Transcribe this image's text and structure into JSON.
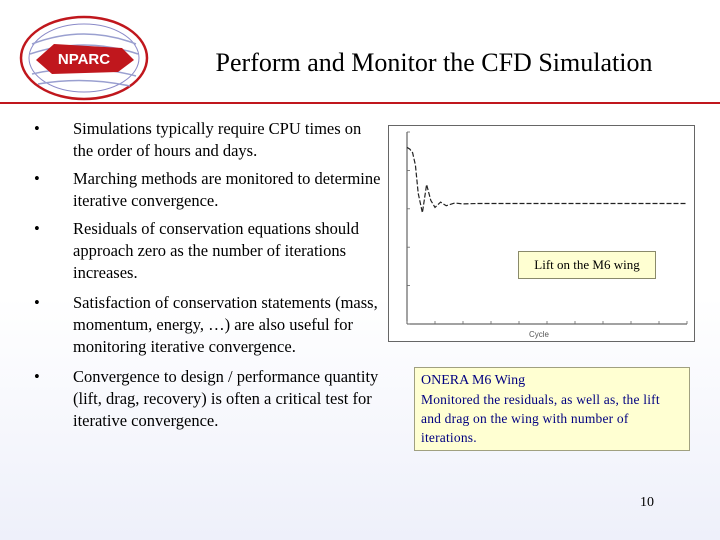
{
  "slide": {
    "logo_text": "NPARC",
    "title": "Perform and Monitor the CFD Simulation",
    "page_number": "10"
  },
  "bullets": [
    {
      "symbol": "•",
      "text": "Simulations typically require CPU times on the order of hours and days."
    },
    {
      "symbol": "•",
      "text": "Marching methods are monitored to determine iterative convergence."
    },
    {
      "symbol": "•",
      "text": "Residuals of conservation equations should approach zero as the number of iterations increases."
    },
    {
      "symbol": "•",
      "text": "Satisfaction of conservation statements (mass, momentum, energy, …) are also useful for monitoring iterative convergence."
    },
    {
      "symbol": "•",
      "text": "Convergence to design / performance quantity (lift, drag, recovery) is often a critical test for iterative convergence."
    }
  ],
  "chart_label": "Lift on the M6 wing",
  "info_box": {
    "title": "ONERA M6 Wing",
    "body": "Monitored the residuals, as well as, the lift and drag on the wing with number of iterations."
  },
  "colors": {
    "title_rule": "#c0171d",
    "callout_fill": "#ffffd2",
    "callout_text": "#000080",
    "logo_accent": "#c0171d"
  },
  "chart_data": {
    "type": "line",
    "xlabel": "Cycle",
    "ylabel": "",
    "xlim": [
      0,
      1000
    ],
    "series": [
      {
        "x": [
          0,
          10,
          20,
          30,
          40,
          55,
          70,
          85,
          100,
          120,
          140,
          170,
          200,
          250,
          300,
          1000
        ],
        "y": [
          1.0,
          0.99,
          0.97,
          0.9,
          0.74,
          0.63,
          0.79,
          0.7,
          0.66,
          0.69,
          0.67,
          0.685,
          0.68,
          0.682,
          0.682,
          0.682
        ]
      }
    ]
  }
}
